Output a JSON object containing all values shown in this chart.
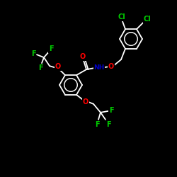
{
  "background_color": "#000000",
  "bond_color": "#ffffff",
  "atom_colors": {
    "O": "#ff0000",
    "N": "#0000cc",
    "F": "#00cc00",
    "Cl": "#00cc00",
    "C": "#ffffff",
    "H": "#ffffff"
  },
  "figsize": [
    2.5,
    2.5
  ],
  "dpi": 100,
  "lw": 1.3,
  "r_hex": 16,
  "font_size": 7
}
